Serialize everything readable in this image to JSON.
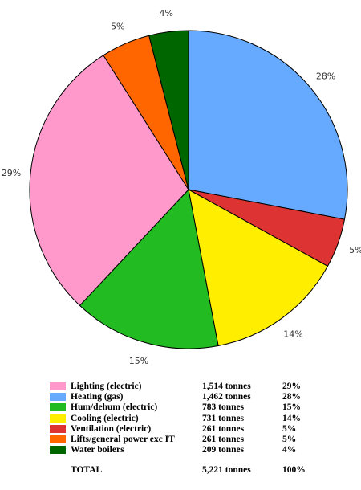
{
  "chart_data": {
    "type": "pie",
    "slices": [
      {
        "label": "Heating (gas)",
        "amount": "1,462 tonnes",
        "percent_label": "28%",
        "value": 1462,
        "color": "#66aaff"
      },
      {
        "label": "Ventilation (electric)",
        "amount": "261 tonnes",
        "percent_label": "5%",
        "value": 261,
        "color": "#dd3333"
      },
      {
        "label": "Cooling (electric)",
        "amount": "731 tonnes",
        "percent_label": "14%",
        "value": 731,
        "color": "#ffee00"
      },
      {
        "label": "Hum/dehum (electric)",
        "amount": "783 tonnes",
        "percent_label": "15%",
        "value": 783,
        "color": "#22bb22"
      },
      {
        "label": "Lighting (electric)",
        "amount": "1,514 tonnes",
        "percent_label": "29%",
        "value": 1514,
        "color": "#ff99cc"
      },
      {
        "label": "Lifts/general power exc IT",
        "amount": "261 tonnes",
        "percent_label": "5%",
        "value": 261,
        "color": "#ff6600"
      },
      {
        "label": "Water boilers",
        "amount": "209 tonnes",
        "percent_label": "4%",
        "value": 209,
        "color": "#006600"
      }
    ]
  },
  "legend": {
    "items": [
      {
        "label": "Lighting (electric)",
        "amount": "1,514 tonnes",
        "pct": "29%",
        "color": "#ff99cc"
      },
      {
        "label": "Heating (gas)",
        "amount": "1,462 tonnes",
        "pct": "28%",
        "color": "#66aaff"
      },
      {
        "label": "Hum/dehum (electric)",
        "amount": "783 tonnes",
        "pct": "15%",
        "color": "#22bb22"
      },
      {
        "label": "Cooling (electric)",
        "amount": "731 tonnes",
        "pct": "14%",
        "color": "#ffee00"
      },
      {
        "label": "Ventilation (electric)",
        "amount": "261 tonnes",
        "pct": "5%",
        "color": "#dd3333"
      },
      {
        "label": "Lifts/general power exc IT",
        "amount": "261 tonnes",
        "pct": "5%",
        "color": "#ff6600"
      },
      {
        "label": "Water boilers",
        "amount": "209 tonnes",
        "pct": "4%",
        "color": "#006600"
      }
    ],
    "total": {
      "label": "TOTAL",
      "amount": "5,221 tonnes",
      "pct": "100%"
    }
  }
}
